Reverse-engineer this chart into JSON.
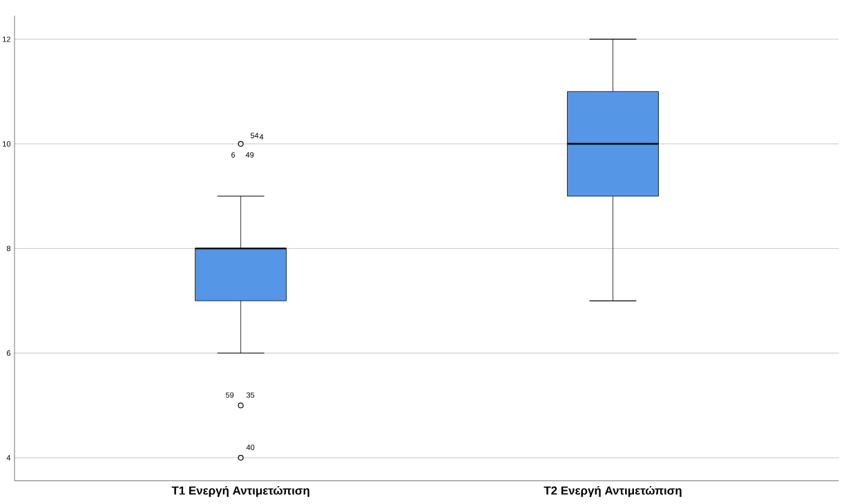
{
  "chart_data": {
    "type": "box",
    "categories": [
      "T1 Ενεργή Αντιμετώπιση",
      "T2 Ενεργή Αντιμετώπιση"
    ],
    "boxes": [
      {
        "low": 6,
        "q1": 7,
        "median": 8,
        "q3": 8,
        "high": 9,
        "outliers": [
          10,
          5,
          4
        ]
      },
      {
        "low": 7,
        "q1": 9,
        "median": 10,
        "q3": 11,
        "high": 12
      }
    ],
    "color": "#5596e6",
    "ylim": [
      3.56,
      12.45
    ],
    "yticks": [
      4,
      6,
      8,
      10,
      12
    ],
    "grid": "y",
    "annotations": [
      "54",
      "4",
      "6",
      "49",
      "59",
      "35",
      "40"
    ]
  }
}
